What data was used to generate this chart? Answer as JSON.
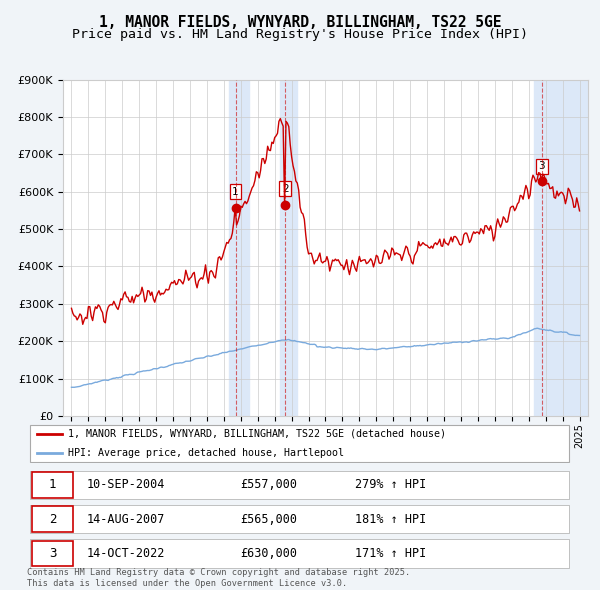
{
  "title_line1": "1, MANOR FIELDS, WYNYARD, BILLINGHAM, TS22 5GE",
  "title_line2": "Price paid vs. HM Land Registry's House Price Index (HPI)",
  "red_label": "1, MANOR FIELDS, WYNYARD, BILLINGHAM, TS22 5GE (detached house)",
  "blue_label": "HPI: Average price, detached house, Hartlepool",
  "sale_markers": [
    {
      "num": 1,
      "x": 2004.69,
      "price": 557000
    },
    {
      "num": 2,
      "x": 2007.62,
      "price": 565000
    },
    {
      "num": 3,
      "x": 2022.78,
      "price": 630000
    }
  ],
  "table_rows": [
    {
      "num": 1,
      "date": "10-SEP-2004",
      "price": "£557,000",
      "change": "279% ↑ HPI"
    },
    {
      "num": 2,
      "date": "14-AUG-2007",
      "price": "£565,000",
      "change": "181% ↑ HPI"
    },
    {
      "num": 3,
      "date": "14-OCT-2022",
      "price": "£630,000",
      "change": "171% ↑ HPI"
    }
  ],
  "footnote": "Contains HM Land Registry data © Crown copyright and database right 2025.\nThis data is licensed under the Open Government Licence v3.0.",
  "ylim": [
    0,
    900000
  ],
  "xlim": [
    1994.5,
    2025.5
  ],
  "bg_color": "#f0f4ff",
  "plot_bg": "#ffffff",
  "red_color": "#cc0000",
  "blue_color": "#7aaadd",
  "highlight_color": "#dce8f8",
  "grid_color": "#cccccc",
  "title_fontsize": 10.5,
  "subtitle_fontsize": 9.5,
  "shade1_x0": 2004.3,
  "shade1_x1": 2005.5,
  "shade2_x0": 2007.3,
  "shade2_x1": 2008.3,
  "shade3_x0": 2022.3,
  "shade3_x1": 2025.5
}
